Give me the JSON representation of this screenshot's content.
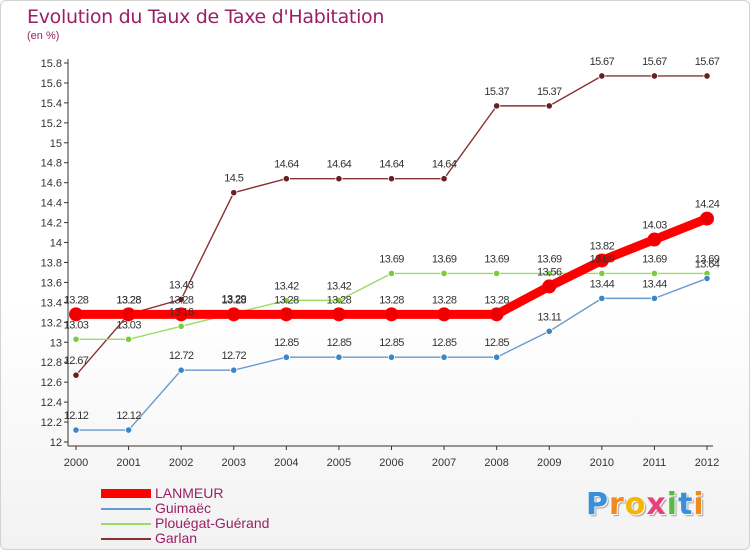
{
  "chart_data": {
    "type": "line",
    "title": "Evolution du Taux de Taxe d'Habitation",
    "unit": "(en %)",
    "x": [
      "2000",
      "2001",
      "2002",
      "2003",
      "2004",
      "2005",
      "2006",
      "2007",
      "2008",
      "2009",
      "2010",
      "2011",
      "2012"
    ],
    "y_ticks": [
      "12",
      "12.2",
      "12.4",
      "12.6",
      "12.8",
      "13",
      "13.2",
      "13.4",
      "13.6",
      "13.8",
      "14",
      "14.2",
      "14.4",
      "14.6",
      "14.8",
      "15",
      "15.2",
      "15.4",
      "15.6",
      "15.8"
    ],
    "ylim": [
      12,
      15.8
    ],
    "grid": false,
    "legend_position": "bottom-left",
    "series": [
      {
        "name": "LANMEUR",
        "color": "#ff0000",
        "marker": "#ee0000",
        "thick": true,
        "values": [
          13.28,
          13.28,
          13.28,
          13.28,
          13.28,
          13.28,
          13.28,
          13.28,
          13.28,
          13.56,
          13.82,
          14.03,
          14.24
        ],
        "labels": [
          "13.28",
          "13.28",
          "13.28",
          "13.28",
          "13.28",
          "13.28",
          "13.28",
          "13.28",
          "13.28",
          "13.56",
          "13.82",
          "14.03",
          "14.24"
        ]
      },
      {
        "name": "Guimaëc",
        "color": "#6699cc",
        "marker": "#3a86c8",
        "thick": false,
        "values": [
          12.12,
          12.12,
          12.72,
          12.72,
          12.85,
          12.85,
          12.85,
          12.85,
          12.85,
          13.11,
          13.44,
          13.44,
          13.64
        ],
        "labels": [
          "12.12",
          "12.12",
          "12.72",
          "12.72",
          "12.85",
          "12.85",
          "12.85",
          "12.85",
          "12.85",
          "13.11",
          "13.44",
          "13.44",
          "13.64"
        ]
      },
      {
        "name": "Plouégat-Guérand",
        "color": "#99dd66",
        "marker": "#7acc3a",
        "thick": false,
        "values": [
          13.03,
          13.03,
          13.16,
          13.29,
          13.42,
          13.42,
          13.69,
          13.69,
          13.69,
          13.69,
          13.69,
          13.69,
          13.69
        ],
        "labels": [
          "13.03",
          "13.03",
          "13.16",
          "13.29",
          "13.42",
          "13.42",
          "13.69",
          "13.69",
          "13.69",
          "13.69",
          "13.69",
          "13.69",
          "13.69"
        ]
      },
      {
        "name": "Garlan",
        "color": "#883333",
        "marker": "#6a1f1f",
        "thick": false,
        "values": [
          12.67,
          13.28,
          13.43,
          14.5,
          14.64,
          14.64,
          14.64,
          14.64,
          15.37,
          15.37,
          15.67,
          15.67,
          15.67
        ],
        "labels": [
          "12.67",
          "13.28",
          "13.43",
          "14.5",
          "14.64",
          "14.64",
          "14.64",
          "14.64",
          "15.37",
          "15.37",
          "15.67",
          "15.67",
          "15.67"
        ]
      }
    ]
  },
  "brand": {
    "letters": [
      "P",
      "r",
      "o",
      "x",
      "i",
      "t",
      "i"
    ],
    "colors": [
      "#3a8fd8",
      "#f08a1c",
      "#f5b700",
      "#e8407a",
      "#58b947",
      "#3a8fd8",
      "#f08a1c"
    ]
  }
}
